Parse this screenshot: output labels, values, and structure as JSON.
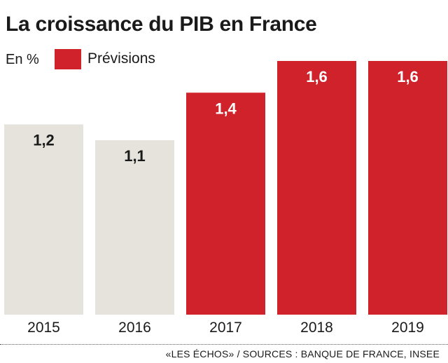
{
  "title": "La croissance du PIB en France",
  "unit_label": "En %",
  "legend": {
    "forecast_label": "Prévisions",
    "forecast_color": "#d0222b"
  },
  "colors": {
    "actual": "#e6e3dc",
    "forecast": "#d0222b"
  },
  "chart_data": {
    "type": "bar",
    "categories": [
      "2015",
      "2016",
      "2017",
      "2018",
      "2019"
    ],
    "values": [
      1.2,
      1.1,
      1.4,
      1.6,
      1.6
    ],
    "value_labels": [
      "1,2",
      "1,1",
      "1,4",
      "1,6",
      "1,6"
    ],
    "forecast": [
      false,
      false,
      true,
      true,
      true
    ],
    "title": "La croissance du PIB en France",
    "ylabel": "En %",
    "ylim": [
      0,
      1.6
    ],
    "grid": false,
    "legend_position": "top-left"
  },
  "source": "«LES ÉCHOS» / SOURCES : BANQUE DE FRANCE, INSEE"
}
